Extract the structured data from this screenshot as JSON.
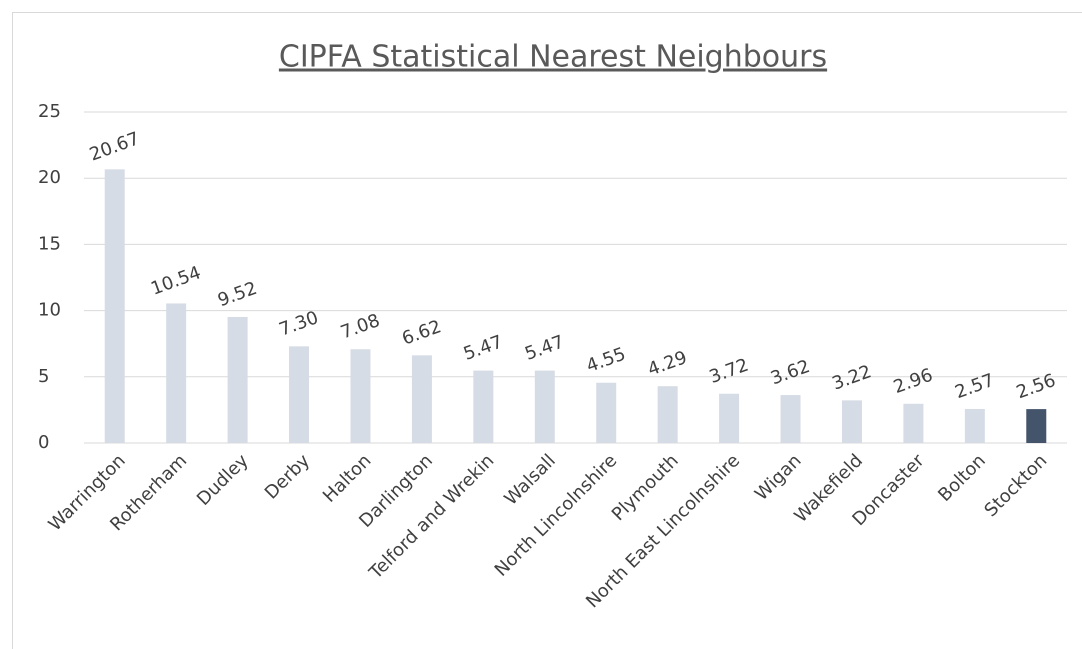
{
  "chart_data": {
    "type": "bar",
    "title": "CIPFA Statistical Nearest Neighbours",
    "categories": [
      "Warrington",
      "Rotherham",
      "Dudley",
      "Derby",
      "Halton",
      "Darlington",
      "Telford and Wrekin",
      "Walsall",
      "North Lincolnshire",
      "Plymouth",
      "North East Lincolnshire",
      "Wigan",
      "Wakefield",
      "Doncaster",
      "Bolton",
      "Stockton"
    ],
    "values": [
      20.67,
      10.54,
      9.52,
      7.3,
      7.08,
      6.62,
      5.47,
      5.47,
      4.55,
      4.29,
      3.72,
      3.62,
      3.22,
      2.96,
      2.57,
      2.56
    ],
    "value_labels": [
      "20.67",
      "10.54",
      "9.52",
      "7.30",
      "7.08",
      "6.62",
      "5.47",
      "5.47",
      "4.55",
      "4.29",
      "3.72",
      "3.62",
      "3.22",
      "2.96",
      "2.57",
      "2.56"
    ],
    "colors": [
      "#d6dce5",
      "#d6dce5",
      "#d6dce5",
      "#d6dce5",
      "#d6dce5",
      "#d6dce5",
      "#d6dce5",
      "#d6dce5",
      "#d6dce5",
      "#d6dce5",
      "#d6dce5",
      "#d6dce5",
      "#d6dce5",
      "#d6dce5",
      "#d6dce5",
      "#44546a"
    ],
    "ylim": [
      0,
      25
    ],
    "yticks": [
      0,
      5,
      10,
      15,
      20,
      25
    ],
    "grid": true
  }
}
